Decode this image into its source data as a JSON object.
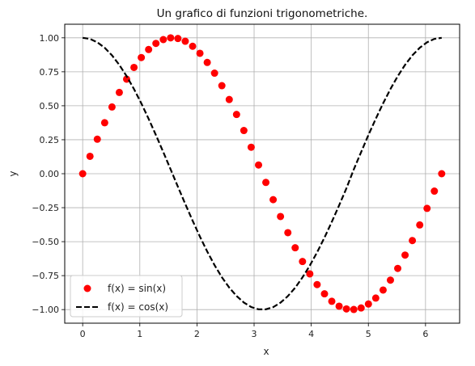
{
  "chart_data": {
    "type": "line",
    "title": "Un grafico di funzioni trigonometriche.",
    "xlabel": "x",
    "ylabel": "y",
    "xlim": [
      -0.314,
      6.597
    ],
    "ylim": [
      -1.1,
      1.1
    ],
    "grid": true,
    "legend_position": "lower-left",
    "x_ticks": [
      0,
      1,
      2,
      3,
      4,
      5,
      6
    ],
    "x_tick_labels": [
      "0",
      "1",
      "2",
      "3",
      "4",
      "5",
      "6"
    ],
    "y_ticks": [
      1.0,
      0.75,
      0.5,
      0.25,
      0.0,
      -0.25,
      -0.5,
      -0.75,
      -1.0
    ],
    "y_tick_labels": [
      "1.00",
      "0.75",
      "0.50",
      "0.25",
      "0.00",
      "−0.25",
      "−0.50",
      "−0.75",
      "−1.00"
    ],
    "series": [
      {
        "name": "f(x) = sin(x)",
        "style": "markers",
        "color": "#ff0000",
        "x": [
          0,
          0.128,
          0.256,
          0.385,
          0.513,
          0.641,
          0.769,
          0.898,
          1.026,
          1.154,
          1.282,
          1.411,
          1.539,
          1.667,
          1.795,
          1.924,
          2.052,
          2.18,
          2.308,
          2.436,
          2.565,
          2.693,
          2.821,
          2.949,
          3.078,
          3.206,
          3.334,
          3.462,
          3.591,
          3.719,
          3.847,
          3.975,
          4.103,
          4.232,
          4.36,
          4.488,
          4.616,
          4.745,
          4.873,
          5.001,
          5.129,
          5.258,
          5.386,
          5.514,
          5.642,
          5.77,
          5.899,
          6.027,
          6.155,
          6.283
        ],
        "y": [
          0,
          0.128,
          0.254,
          0.375,
          0.491,
          0.598,
          0.696,
          0.782,
          0.855,
          0.914,
          0.959,
          0.987,
          1.0,
          0.995,
          0.975,
          0.938,
          0.886,
          0.819,
          0.74,
          0.648,
          0.546,
          0.436,
          0.318,
          0.195,
          0.064,
          -0.064,
          -0.191,
          -0.315,
          -0.434,
          -0.545,
          -0.646,
          -0.737,
          -0.816,
          -0.884,
          -0.939,
          -0.975,
          -0.995,
          -0.999,
          -0.988,
          -0.959,
          -0.915,
          -0.856,
          -0.783,
          -0.697,
          -0.599,
          -0.492,
          -0.377,
          -0.255,
          -0.128,
          0.0
        ]
      },
      {
        "name": "f(x) = cos(x)",
        "style": "dashed",
        "color": "#000000",
        "x": [
          0,
          0.128,
          0.256,
          0.385,
          0.513,
          0.641,
          0.769,
          0.898,
          1.026,
          1.154,
          1.282,
          1.411,
          1.539,
          1.667,
          1.795,
          1.924,
          2.052,
          2.18,
          2.308,
          2.436,
          2.565,
          2.693,
          2.821,
          2.949,
          3.078,
          3.206,
          3.334,
          3.462,
          3.591,
          3.719,
          3.847,
          3.975,
          4.103,
          4.232,
          4.36,
          4.488,
          4.616,
          4.745,
          4.873,
          5.001,
          5.129,
          5.258,
          5.386,
          5.514,
          5.642,
          5.77,
          5.899,
          6.027,
          6.155,
          6.283
        ],
        "y": [
          1.0,
          0.992,
          0.967,
          0.927,
          0.871,
          0.801,
          0.718,
          0.623,
          0.518,
          0.404,
          0.284,
          0.159,
          0.032,
          -0.096,
          -0.222,
          -0.346,
          -0.463,
          -0.573,
          -0.673,
          -0.762,
          -0.838,
          -0.9,
          -0.948,
          -0.981,
          -0.998,
          -0.998,
          -0.982,
          -0.949,
          -0.901,
          -0.839,
          -0.763,
          -0.676,
          -0.578,
          -0.47,
          -0.354,
          -0.233,
          -0.107,
          0.032,
          0.159,
          0.285,
          0.404,
          0.518,
          0.623,
          0.718,
          0.801,
          0.871,
          0.927,
          0.967,
          0.992,
          1.0
        ]
      }
    ]
  }
}
